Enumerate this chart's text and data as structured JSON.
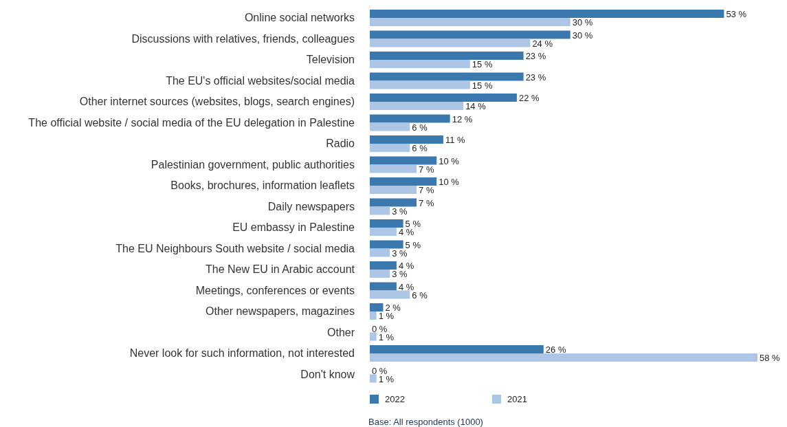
{
  "chart_data": {
    "type": "bar",
    "orientation": "horizontal",
    "categories": [
      "Online social networks",
      "Discussions with relatives, friends, colleagues",
      "Television",
      "The EU's official websites/social media",
      "Other internet sources (websites, blogs, search engines)",
      "The official website / social media of the EU delegation in Palestine",
      "Radio",
      "Palestinian government, public authorities",
      "Books, brochures, information leaflets",
      "Daily newspapers",
      "EU embassy in Palestine",
      "The EU Neighbours South website / social media",
      "The New EU in Arabic account",
      "Meetings, conferences or events",
      "Other newspapers, magazines",
      "Other",
      "Never look for such information, not interested",
      "Don't know"
    ],
    "series": [
      {
        "name": "2022",
        "color": "#3a78ad",
        "values": [
          53,
          30,
          23,
          23,
          22,
          12,
          11,
          10,
          10,
          7,
          5,
          5,
          4,
          4,
          2,
          0,
          26,
          0
        ],
        "value_labels": [
          "53 %",
          "30 %",
          "23 %",
          "23 %",
          "22 %",
          "12 %",
          "11 %",
          "10 %",
          "10 %",
          "7 %",
          "5 %",
          "5 %",
          "4 %",
          "4 %",
          "2 %",
          "0 %",
          "26 %",
          "0 %"
        ]
      },
      {
        "name": "2021",
        "color": "#aec6e6",
        "values": [
          30,
          24,
          15,
          15,
          14,
          6,
          6,
          7,
          7,
          3,
          4,
          3,
          3,
          6,
          1,
          1,
          58,
          1
        ],
        "value_labels": [
          "30 %",
          "24 %",
          "15 %",
          "15 %",
          "14 %",
          "6 %",
          "6 %",
          "7 %",
          "7 %",
          "3 %",
          "4 %",
          "3 %",
          "3 %",
          "6 %",
          "1 %",
          "1 %",
          "58 %",
          "1 %"
        ]
      }
    ],
    "legend": "bottom",
    "grid": false,
    "tick_labels": "y",
    "annotations": [
      "Base: All respondents (1000)"
    ]
  }
}
